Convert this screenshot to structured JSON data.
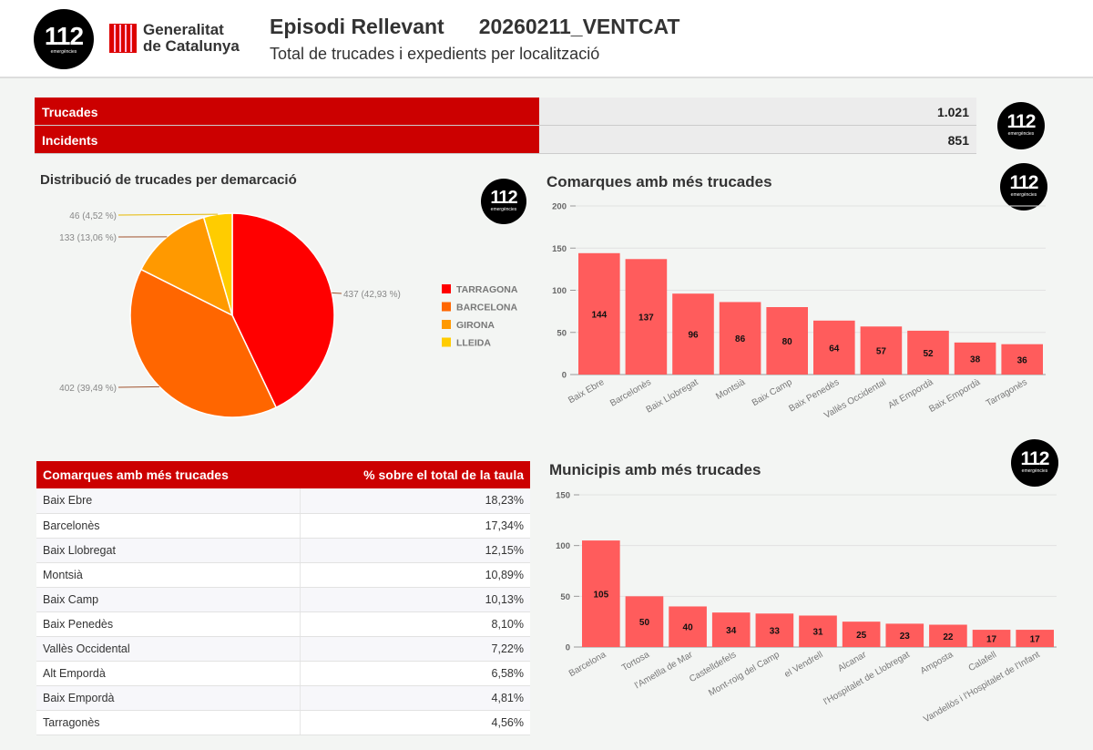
{
  "header": {
    "logo_text": "112",
    "logo_sub": "emergències",
    "gov_line1": "Generalitat",
    "gov_line2": "de Catalunya",
    "title": "Episodi Rellevant",
    "episode": "20260211_VENTCAT",
    "subtitle": "Total de trucades i expedients per localització"
  },
  "summary": [
    {
      "label": "Trucades",
      "value": "1.021"
    },
    {
      "label": "Incidents",
      "value": "851"
    }
  ],
  "colors": {
    "accent": "#cc0000",
    "bar": "#ff5c5c"
  },
  "chart_data": [
    {
      "type": "pie",
      "title": "Distribució de trucades per demarcació",
      "legend": "right",
      "slices": [
        {
          "name": "TARRAGONA",
          "value": 437,
          "label": "437 (42,93 %)",
          "color": "#ff0000"
        },
        {
          "name": "BARCELONA",
          "value": 402,
          "label": "402 (39,49 %)",
          "color": "#ff6600"
        },
        {
          "name": "GIRONA",
          "value": 133,
          "label": "133 (13,06 %)",
          "color": "#ff9900"
        },
        {
          "name": "LLEIDA",
          "value": 46,
          "label": "46 (4,52 %)",
          "color": "#ffcc00"
        }
      ]
    },
    {
      "type": "bar",
      "title": "Comarques amb més trucades",
      "ylim": [
        0,
        200
      ],
      "yticks": [
        0,
        50,
        100,
        150,
        200
      ],
      "grid": true,
      "categories": [
        "Baix Ebre",
        "Barcelonès",
        "Baix Llobregat",
        "Montsià",
        "Baix Camp",
        "Baix Penedès",
        "Vallès Occidental",
        "Alt Empordà",
        "Baix Empordà",
        "Tarragonès"
      ],
      "values": [
        144,
        137,
        96,
        86,
        80,
        64,
        57,
        52,
        38,
        36
      ]
    },
    {
      "type": "bar",
      "title": "Municipis amb més trucades",
      "ylim": [
        0,
        150
      ],
      "yticks": [
        0,
        50,
        100,
        150
      ],
      "grid": true,
      "categories": [
        "Barcelona",
        "Tortosa",
        "l'Ametlla de Mar",
        "Castelldefels",
        "Mont-roig del Camp",
        "el Vendrell",
        "Alcanar",
        "l'Hospitalet de Llobregat",
        "Amposta",
        "Calafell",
        "Vandellòs i l'Hospitalet de l'Infant"
      ],
      "values": [
        105,
        50,
        40,
        34,
        33,
        31,
        25,
        23,
        22,
        17,
        17
      ]
    },
    {
      "type": "table",
      "columns": [
        "Comarques amb més trucades",
        "% sobre el total de la taula"
      ],
      "rows": [
        [
          "Baix Ebre",
          "18,23%"
        ],
        [
          "Barcelonès",
          "17,34%"
        ],
        [
          "Baix Llobregat",
          "12,15%"
        ],
        [
          "Montsià",
          "10,89%"
        ],
        [
          "Baix Camp",
          "10,13%"
        ],
        [
          "Baix Penedès",
          "8,10%"
        ],
        [
          "Vallès Occidental",
          "7,22%"
        ],
        [
          "Alt Empordà",
          "6,58%"
        ],
        [
          "Baix Empordà",
          "4,81%"
        ],
        [
          "Tarragonès",
          "4,56%"
        ]
      ]
    }
  ]
}
